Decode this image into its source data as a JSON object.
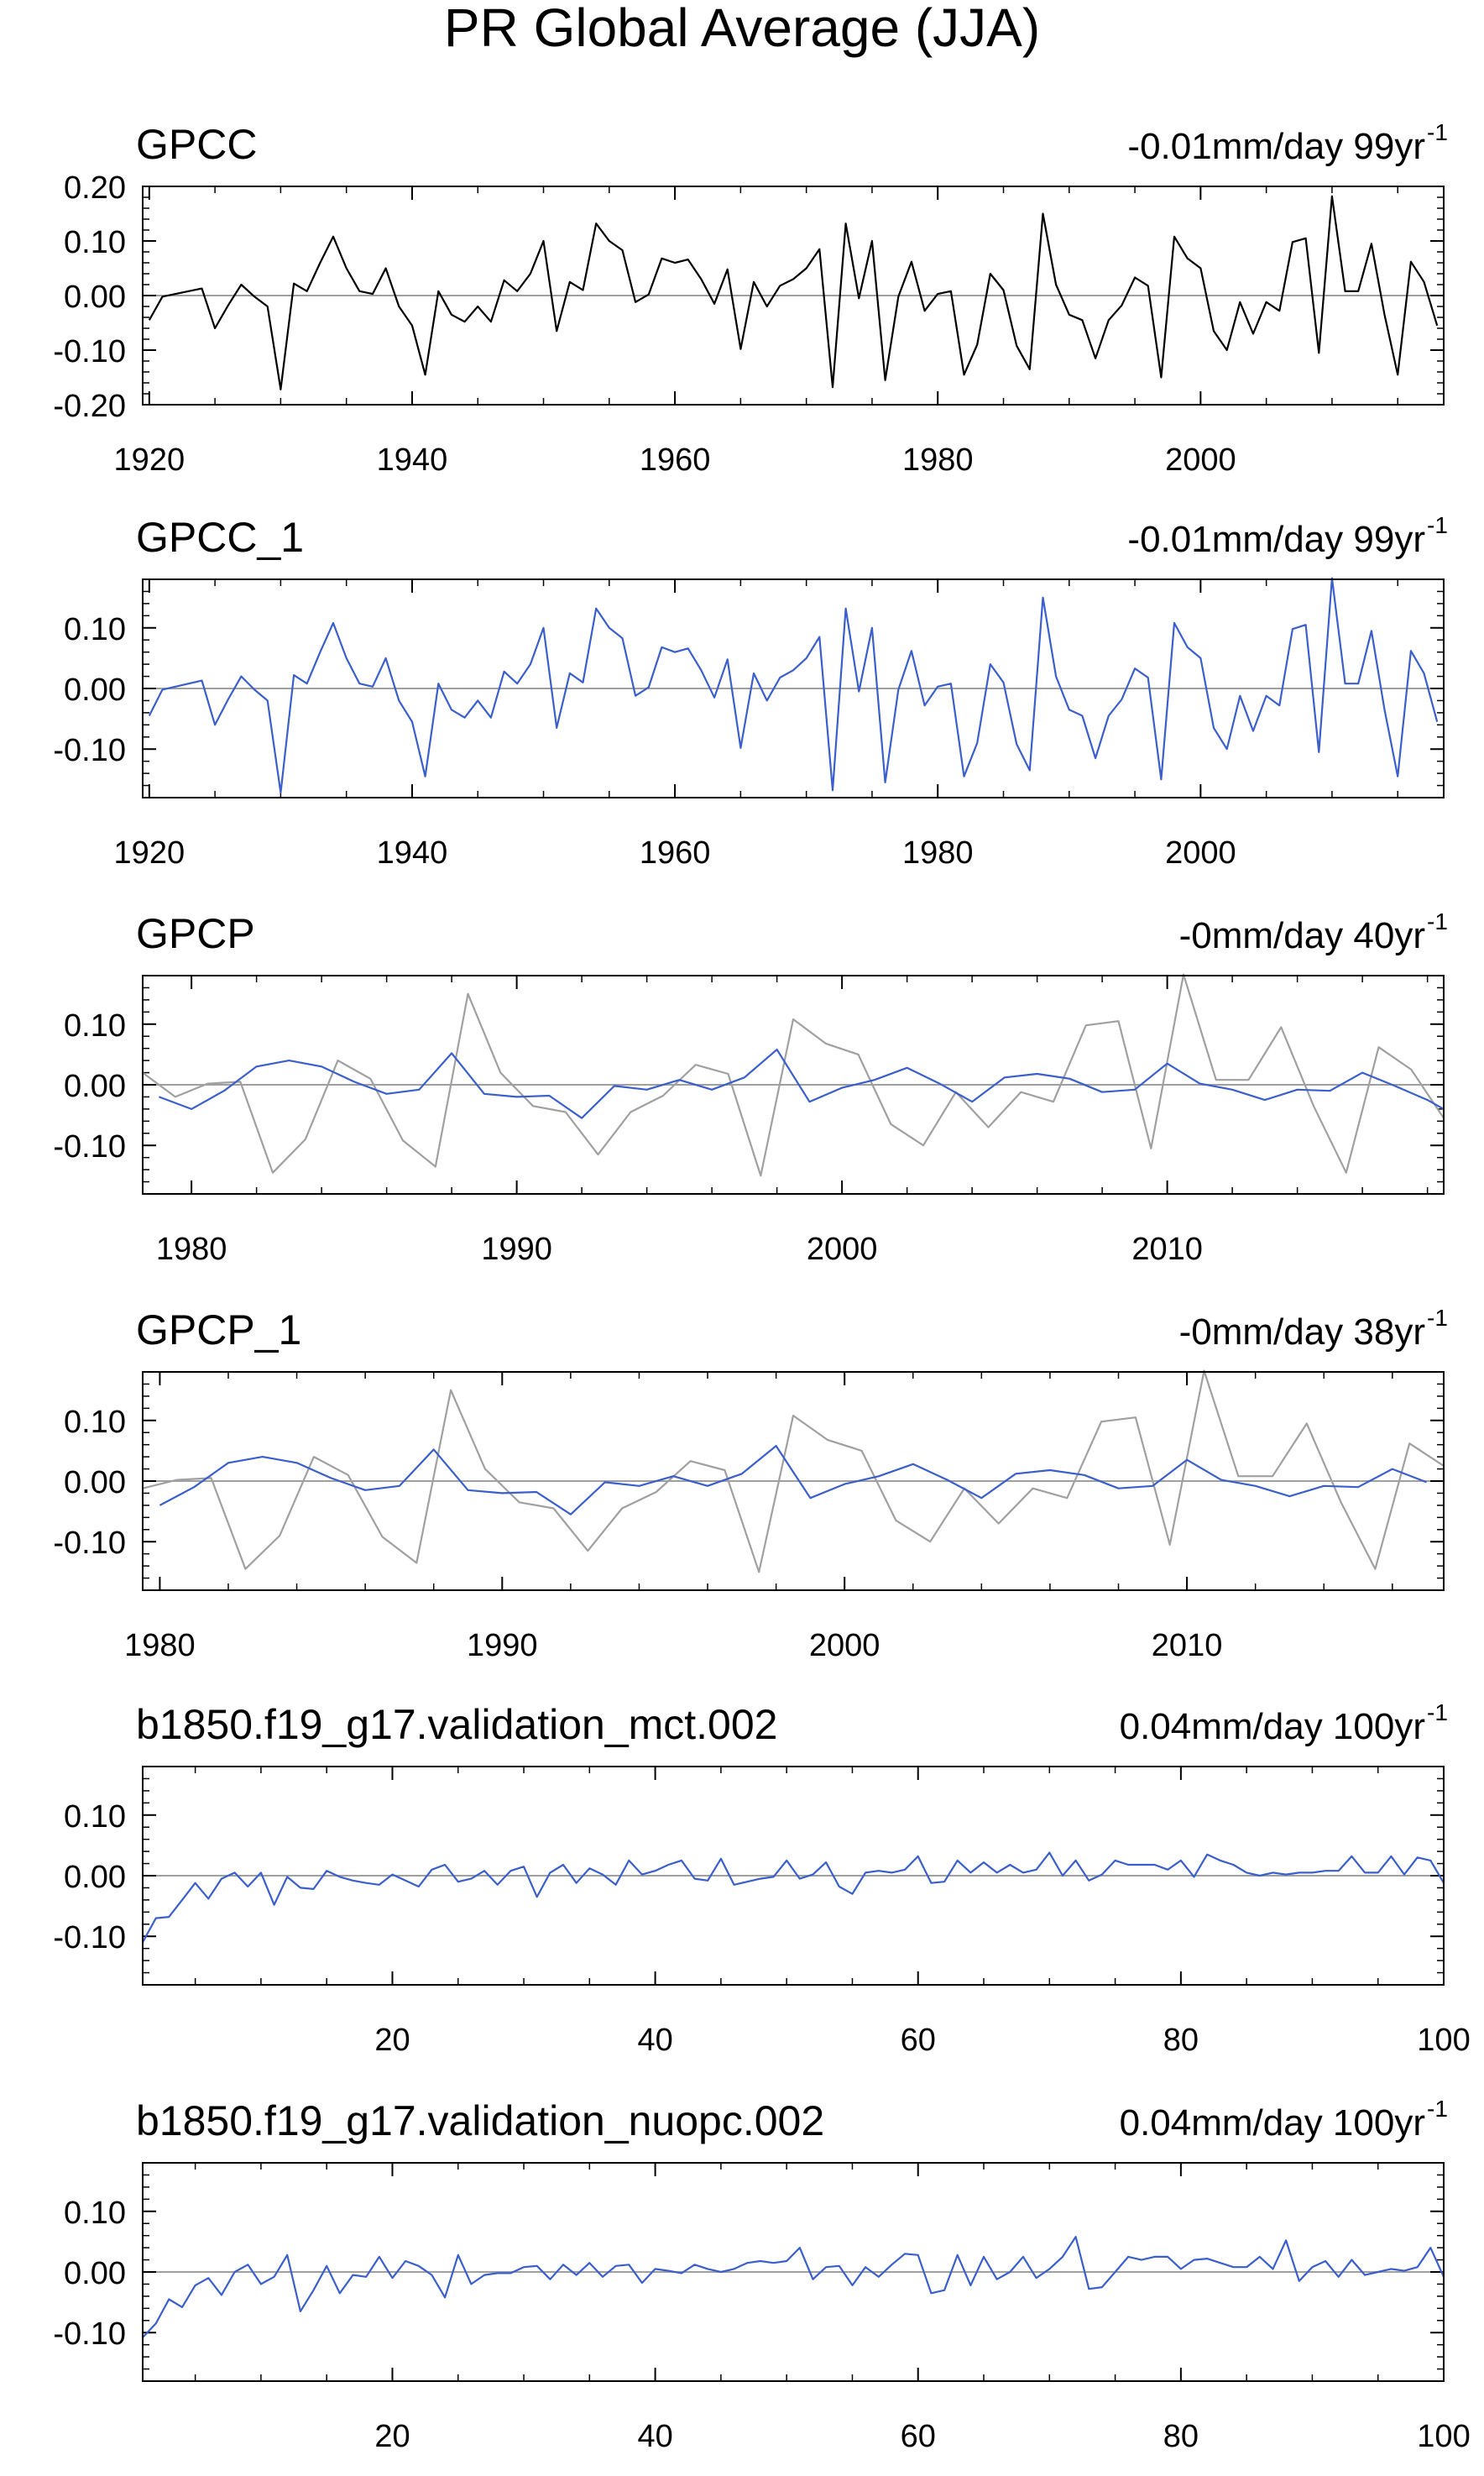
{
  "figure_title": "PR Global Average (JJA)",
  "colors": {
    "black": "#000000",
    "blue": "#3a5fcd",
    "gray": "#a0a0a0",
    "axis": "#000000",
    "zero": "#a0a0a0"
  },
  "chart_data": [
    {
      "type": "line",
      "title": "GPCC",
      "trend": "-0.01mm/day 99yr",
      "trend_superscript": "-1",
      "x_start": 1920,
      "x_end": 2018,
      "xlim": [
        1919.5,
        2018.5
      ],
      "ylim": [
        -0.2,
        0.2
      ],
      "yticks": [
        "-0.20",
        "-0.10",
        "0.00",
        "0.10",
        "0.20"
      ],
      "ytick_values": [
        -0.2,
        -0.1,
        0.0,
        0.1,
        0.2
      ],
      "xticks": [
        "1920",
        "1940",
        "1960",
        "1980",
        "2000"
      ],
      "xtick_values": [
        1920,
        1940,
        1960,
        1980,
        2000
      ],
      "series": [
        {
          "color": "#000000",
          "x_start": 1920,
          "values": [
            -0.045,
            -0.002,
            0.003,
            0.008,
            0.013,
            -0.06,
            -0.018,
            0.02,
            -0.002,
            -0.02,
            -0.172,
            0.022,
            0.008,
            0.06,
            0.108,
            0.05,
            0.008,
            0.003,
            0.05,
            -0.02,
            -0.055,
            -0.145,
            0.008,
            -0.035,
            -0.048,
            -0.02,
            -0.048,
            0.028,
            0.008,
            0.04,
            0.1,
            -0.065,
            0.025,
            0.01,
            0.132,
            0.1,
            0.083,
            -0.012,
            0.002,
            0.068,
            0.06,
            0.066,
            0.03,
            -0.015,
            0.048,
            -0.098,
            0.025,
            -0.02,
            0.018,
            0.03,
            0.05,
            0.085,
            -0.168,
            0.132,
            -0.005,
            0.1,
            -0.155,
            -0.002,
            0.062,
            -0.028,
            0.003,
            0.008,
            -0.145,
            -0.09,
            0.04,
            0.01,
            -0.092,
            -0.135,
            0.15,
            0.02,
            -0.035,
            -0.045,
            -0.115,
            -0.045,
            -0.018,
            0.033,
            0.018,
            -0.15,
            0.108,
            0.068,
            0.05,
            -0.065,
            -0.1,
            -0.012,
            -0.07,
            -0.012,
            -0.028,
            0.098,
            0.105,
            -0.105,
            0.182,
            0.008,
            0.008,
            0.095,
            -0.035,
            -0.145,
            0.062,
            0.025,
            -0.055
          ]
        }
      ]
    },
    {
      "type": "line",
      "title": "GPCC_1",
      "trend": "-0.01mm/day 99yr",
      "trend_superscript": "-1",
      "xlim": [
        1919.5,
        2018.5
      ],
      "ylim": [
        -0.18,
        0.18
      ],
      "yticks": [
        "-0.10",
        "0.00",
        "0.10"
      ],
      "ytick_values": [
        -0.1,
        0.0,
        0.1
      ],
      "xticks": [
        "1920",
        "1940",
        "1960",
        "1980",
        "2000"
      ],
      "xtick_values": [
        1920,
        1940,
        1960,
        1980,
        2000
      ],
      "series": [
        {
          "color": "#3a5fcd",
          "x_start": 1920,
          "values": [
            -0.045,
            -0.002,
            0.003,
            0.008,
            0.013,
            -0.06,
            -0.018,
            0.02,
            -0.002,
            -0.02,
            -0.172,
            0.022,
            0.008,
            0.06,
            0.108,
            0.05,
            0.008,
            0.003,
            0.05,
            -0.02,
            -0.055,
            -0.145,
            0.008,
            -0.035,
            -0.048,
            -0.02,
            -0.048,
            0.028,
            0.008,
            0.04,
            0.1,
            -0.065,
            0.025,
            0.01,
            0.132,
            0.1,
            0.083,
            -0.012,
            0.002,
            0.068,
            0.06,
            0.066,
            0.03,
            -0.015,
            0.048,
            -0.098,
            0.025,
            -0.02,
            0.018,
            0.03,
            0.05,
            0.085,
            -0.168,
            0.132,
            -0.005,
            0.1,
            -0.155,
            -0.002,
            0.062,
            -0.028,
            0.003,
            0.008,
            -0.145,
            -0.09,
            0.04,
            0.01,
            -0.092,
            -0.135,
            0.15,
            0.02,
            -0.035,
            -0.045,
            -0.115,
            -0.045,
            -0.018,
            0.033,
            0.018,
            -0.15,
            0.108,
            0.068,
            0.05,
            -0.065,
            -0.1,
            -0.012,
            -0.07,
            -0.012,
            -0.028,
            0.098,
            0.105,
            -0.105,
            0.182,
            0.008,
            0.008,
            0.095,
            -0.035,
            -0.145,
            0.062,
            0.025,
            -0.055
          ]
        }
      ]
    },
    {
      "type": "line",
      "title": "GPCP",
      "trend": "-0mm/day 40yr",
      "trend_superscript": "-1",
      "xlim": [
        1978.5,
        2018.5
      ],
      "ylim": [
        -0.18,
        0.18
      ],
      "yticks": [
        "-0.10",
        "0.00",
        "0.10"
      ],
      "ytick_values": [
        -0.1,
        0.0,
        0.1
      ],
      "xticks": [
        "1980",
        "1990",
        "2000",
        "2010"
      ],
      "xtick_values": [
        1980,
        1990,
        2000,
        2010
      ],
      "series": [
        {
          "color": "#a0a0a0",
          "x_start": 1978.5,
          "values": [
            0.02,
            -0.02,
            0.002,
            0.005,
            -0.145,
            -0.09,
            0.04,
            0.01,
            -0.092,
            -0.135,
            0.15,
            0.02,
            -0.035,
            -0.045,
            -0.115,
            -0.045,
            -0.018,
            0.033,
            0.018,
            -0.15,
            0.108,
            0.068,
            0.05,
            -0.065,
            -0.1,
            -0.012,
            -0.07,
            -0.012,
            -0.028,
            0.098,
            0.105,
            -0.105,
            0.182,
            0.008,
            0.008,
            0.095,
            -0.035,
            -0.145,
            0.062,
            0.025,
            -0.055
          ]
        },
        {
          "color": "#3a5fcd",
          "x_start": 1979,
          "values": [
            -0.02,
            -0.04,
            -0.01,
            0.03,
            0.04,
            0.03,
            0.005,
            -0.015,
            -0.008,
            0.052,
            -0.015,
            -0.02,
            -0.018,
            -0.055,
            -0.002,
            -0.008,
            0.008,
            -0.008,
            0.012,
            0.058,
            -0.028,
            -0.005,
            0.008,
            0.028,
            0.002,
            -0.028,
            0.012,
            0.018,
            0.01,
            -0.012,
            -0.008,
            0.035,
            0.002,
            -0.008,
            -0.025,
            -0.008,
            -0.01,
            0.02,
            -0.002,
            -0.025,
            -0.04
          ]
        }
      ]
    },
    {
      "type": "line",
      "title": "GPCP_1",
      "trend": "-0mm/day 38yr",
      "trend_superscript": "-1",
      "xlim": [
        1979.5,
        2017.5
      ],
      "ylim": [
        -0.18,
        0.18
      ],
      "yticks": [
        "-0.10",
        "0.00",
        "0.10"
      ],
      "ytick_values": [
        -0.1,
        0.0,
        0.1
      ],
      "xticks": [
        "1980",
        "1990",
        "2000",
        "2010"
      ],
      "xtick_values": [
        1980,
        1990,
        2000,
        2010
      ],
      "series": [
        {
          "color": "#a0a0a0",
          "x_start": 1979.5,
          "values": [
            -0.012,
            0.002,
            0.005,
            -0.145,
            -0.09,
            0.04,
            0.01,
            -0.092,
            -0.135,
            0.15,
            0.02,
            -0.035,
            -0.045,
            -0.115,
            -0.045,
            -0.018,
            0.033,
            0.018,
            -0.15,
            0.108,
            0.068,
            0.05,
            -0.065,
            -0.1,
            -0.012,
            -0.07,
            -0.012,
            -0.028,
            0.098,
            0.105,
            -0.105,
            0.182,
            0.008,
            0.008,
            0.095,
            -0.035,
            -0.145,
            0.062,
            0.025,
            -0.012
          ]
        },
        {
          "color": "#3a5fcd",
          "x_start": 1980,
          "values": [
            -0.04,
            -0.01,
            0.03,
            0.04,
            0.03,
            0.005,
            -0.015,
            -0.008,
            0.052,
            -0.015,
            -0.02,
            -0.018,
            -0.055,
            -0.002,
            -0.008,
            0.008,
            -0.008,
            0.012,
            0.058,
            -0.028,
            -0.005,
            0.008,
            0.028,
            0.002,
            -0.028,
            0.012,
            0.018,
            0.01,
            -0.012,
            -0.008,
            0.035,
            0.002,
            -0.008,
            -0.025,
            -0.008,
            -0.01,
            0.02,
            -0.002
          ]
        }
      ]
    },
    {
      "type": "line",
      "title": "b1850.f19_g17.validation_mct.002",
      "trend": "0.04mm/day 100yr",
      "trend_superscript": "-1",
      "xlim": [
        1,
        100
      ],
      "ylim": [
        -0.18,
        0.18
      ],
      "yticks": [
        "-0.10",
        "0.00",
        "0.10"
      ],
      "ytick_values": [
        -0.1,
        0.0,
        0.1
      ],
      "xticks": [
        "20",
        "40",
        "60",
        "80",
        "100"
      ],
      "xtick_values": [
        20,
        40,
        60,
        80,
        100
      ],
      "series": [
        {
          "color": "#3a5fcd",
          "x_start": 1,
          "values": [
            -0.11,
            -0.07,
            -0.068,
            -0.04,
            -0.012,
            -0.038,
            -0.005,
            0.005,
            -0.018,
            0.005,
            -0.048,
            -0.002,
            -0.02,
            -0.022,
            0.008,
            -0.002,
            -0.008,
            -0.012,
            -0.015,
            0.002,
            -0.008,
            -0.018,
            0.01,
            0.018,
            -0.01,
            -0.005,
            0.008,
            -0.015,
            0.008,
            0.015,
            -0.035,
            0.005,
            0.018,
            -0.012,
            0.012,
            0.002,
            -0.015,
            0.025,
            0.002,
            0.008,
            0.018,
            0.025,
            -0.005,
            -0.008,
            0.028,
            -0.015,
            -0.01,
            -0.005,
            -0.002,
            0.025,
            -0.005,
            0.002,
            0.022,
            -0.018,
            -0.03,
            0.005,
            0.008,
            0.005,
            0.01,
            0.032,
            -0.012,
            -0.01,
            0.025,
            0.005,
            0.022,
            0.005,
            0.018,
            0.005,
            0.01,
            0.038,
            0.0,
            0.025,
            -0.008,
            0.002,
            0.025,
            0.018,
            0.018,
            0.018,
            0.01,
            0.025,
            -0.002,
            0.035,
            0.025,
            0.018,
            0.005,
            0.0,
            0.005,
            0.002,
            0.005,
            0.005,
            0.008,
            0.008,
            0.032,
            0.005,
            0.005,
            0.032,
            0.002,
            0.03,
            0.025,
            -0.012,
            0.0,
            0.012
          ]
        }
      ]
    },
    {
      "type": "line",
      "title": "b1850.f19_g17.validation_nuopc.002",
      "trend": "0.04mm/day 100yr",
      "trend_superscript": "-1",
      "xlim": [
        1,
        100
      ],
      "ylim": [
        -0.18,
        0.18
      ],
      "yticks": [
        "-0.10",
        "0.00",
        "0.10"
      ],
      "ytick_values": [
        -0.1,
        0.0,
        0.1
      ],
      "xticks": [
        "20",
        "40",
        "60",
        "80",
        "100"
      ],
      "xtick_values": [
        20,
        40,
        60,
        80,
        100
      ],
      "series": [
        {
          "color": "#3a5fcd",
          "x_start": 1,
          "values": [
            -0.108,
            -0.085,
            -0.045,
            -0.058,
            -0.022,
            -0.01,
            -0.038,
            0.0,
            0.012,
            -0.02,
            -0.008,
            0.028,
            -0.065,
            -0.03,
            0.01,
            -0.035,
            -0.005,
            -0.008,
            0.025,
            -0.01,
            0.018,
            0.01,
            -0.005,
            -0.042,
            0.028,
            -0.02,
            -0.005,
            -0.002,
            -0.002,
            0.008,
            0.01,
            -0.012,
            0.012,
            -0.005,
            0.015,
            -0.008,
            0.01,
            0.012,
            -0.018,
            0.005,
            0.002,
            -0.002,
            0.012,
            0.005,
            0.0,
            0.005,
            0.015,
            0.018,
            0.015,
            0.018,
            0.04,
            -0.012,
            0.008,
            0.01,
            -0.022,
            0.008,
            -0.008,
            0.012,
            0.03,
            0.028,
            -0.035,
            -0.03,
            0.028,
            -0.022,
            0.025,
            -0.012,
            0.0,
            0.025,
            -0.01,
            0.005,
            0.025,
            0.058,
            -0.028,
            -0.025,
            0.0,
            0.025,
            0.02,
            0.025,
            0.025,
            0.005,
            0.02,
            0.022,
            0.015,
            0.008,
            0.008,
            0.025,
            0.005,
            0.052,
            -0.015,
            0.008,
            0.018,
            -0.008,
            0.02,
            -0.005,
            0.0,
            0.005,
            0.002,
            0.008,
            0.04,
            -0.008
          ]
        }
      ]
    }
  ]
}
